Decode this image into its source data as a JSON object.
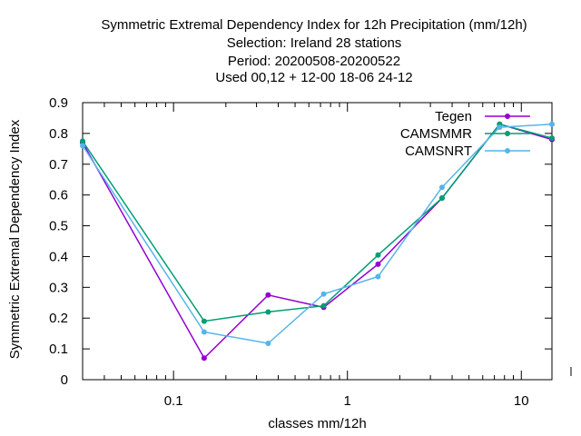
{
  "chart_data": {
    "type": "line",
    "title_lines": [
      "Symmetric Extremal Dependency Index  for 12h Precipitation (mm/12h)",
      "Selection: Ireland      28 stations",
      "Period: 20200508-20200522",
      "Used  00,12  + 12-00 18-06 24-12"
    ],
    "xlabel": "classes mm/12h",
    "ylabel": "Symmetric Extremal Dependency Index",
    "x_scale": "log",
    "xlim": [
      0.03,
      15
    ],
    "ylim": [
      0,
      0.9
    ],
    "x_ticks": [
      {
        "value": 0.1,
        "label": "0.1"
      },
      {
        "value": 1,
        "label": "1"
      },
      {
        "value": 10,
        "label": "10"
      }
    ],
    "y_ticks": [
      {
        "value": 0,
        "label": "0"
      },
      {
        "value": 0.1,
        "label": "0.1"
      },
      {
        "value": 0.2,
        "label": "0.2"
      },
      {
        "value": 0.3,
        "label": "0.3"
      },
      {
        "value": 0.4,
        "label": "0.4"
      },
      {
        "value": 0.5,
        "label": "0.5"
      },
      {
        "value": 0.6,
        "label": "0.6"
      },
      {
        "value": 0.7,
        "label": "0.7"
      },
      {
        "value": 0.8,
        "label": "0.8"
      },
      {
        "value": 0.9,
        "label": "0.9"
      }
    ],
    "grid": false,
    "legend_position": "top-right",
    "series": [
      {
        "name": "Tegen",
        "color": "#9400d3",
        "x": [
          0.03,
          0.15,
          0.35,
          0.73,
          1.5,
          3.5,
          7.5,
          15
        ],
        "y": [
          0.77,
          0.07,
          0.275,
          0.235,
          0.375,
          0.59,
          0.83,
          0.78
        ]
      },
      {
        "name": "CAMSMMR",
        "color": "#009e73",
        "x": [
          0.03,
          0.15,
          0.35,
          0.73,
          1.5,
          3.5,
          7.5,
          15
        ],
        "y": [
          0.775,
          0.19,
          0.22,
          0.24,
          0.405,
          0.59,
          0.83,
          0.785
        ]
      },
      {
        "name": "CAMSNRT",
        "color": "#56b4e9",
        "x": [
          0.03,
          0.15,
          0.35,
          0.73,
          1.5,
          3.5,
          7.5,
          15
        ],
        "y": [
          0.76,
          0.155,
          0.118,
          0.278,
          0.335,
          0.625,
          0.82,
          0.83
        ]
      }
    ]
  }
}
